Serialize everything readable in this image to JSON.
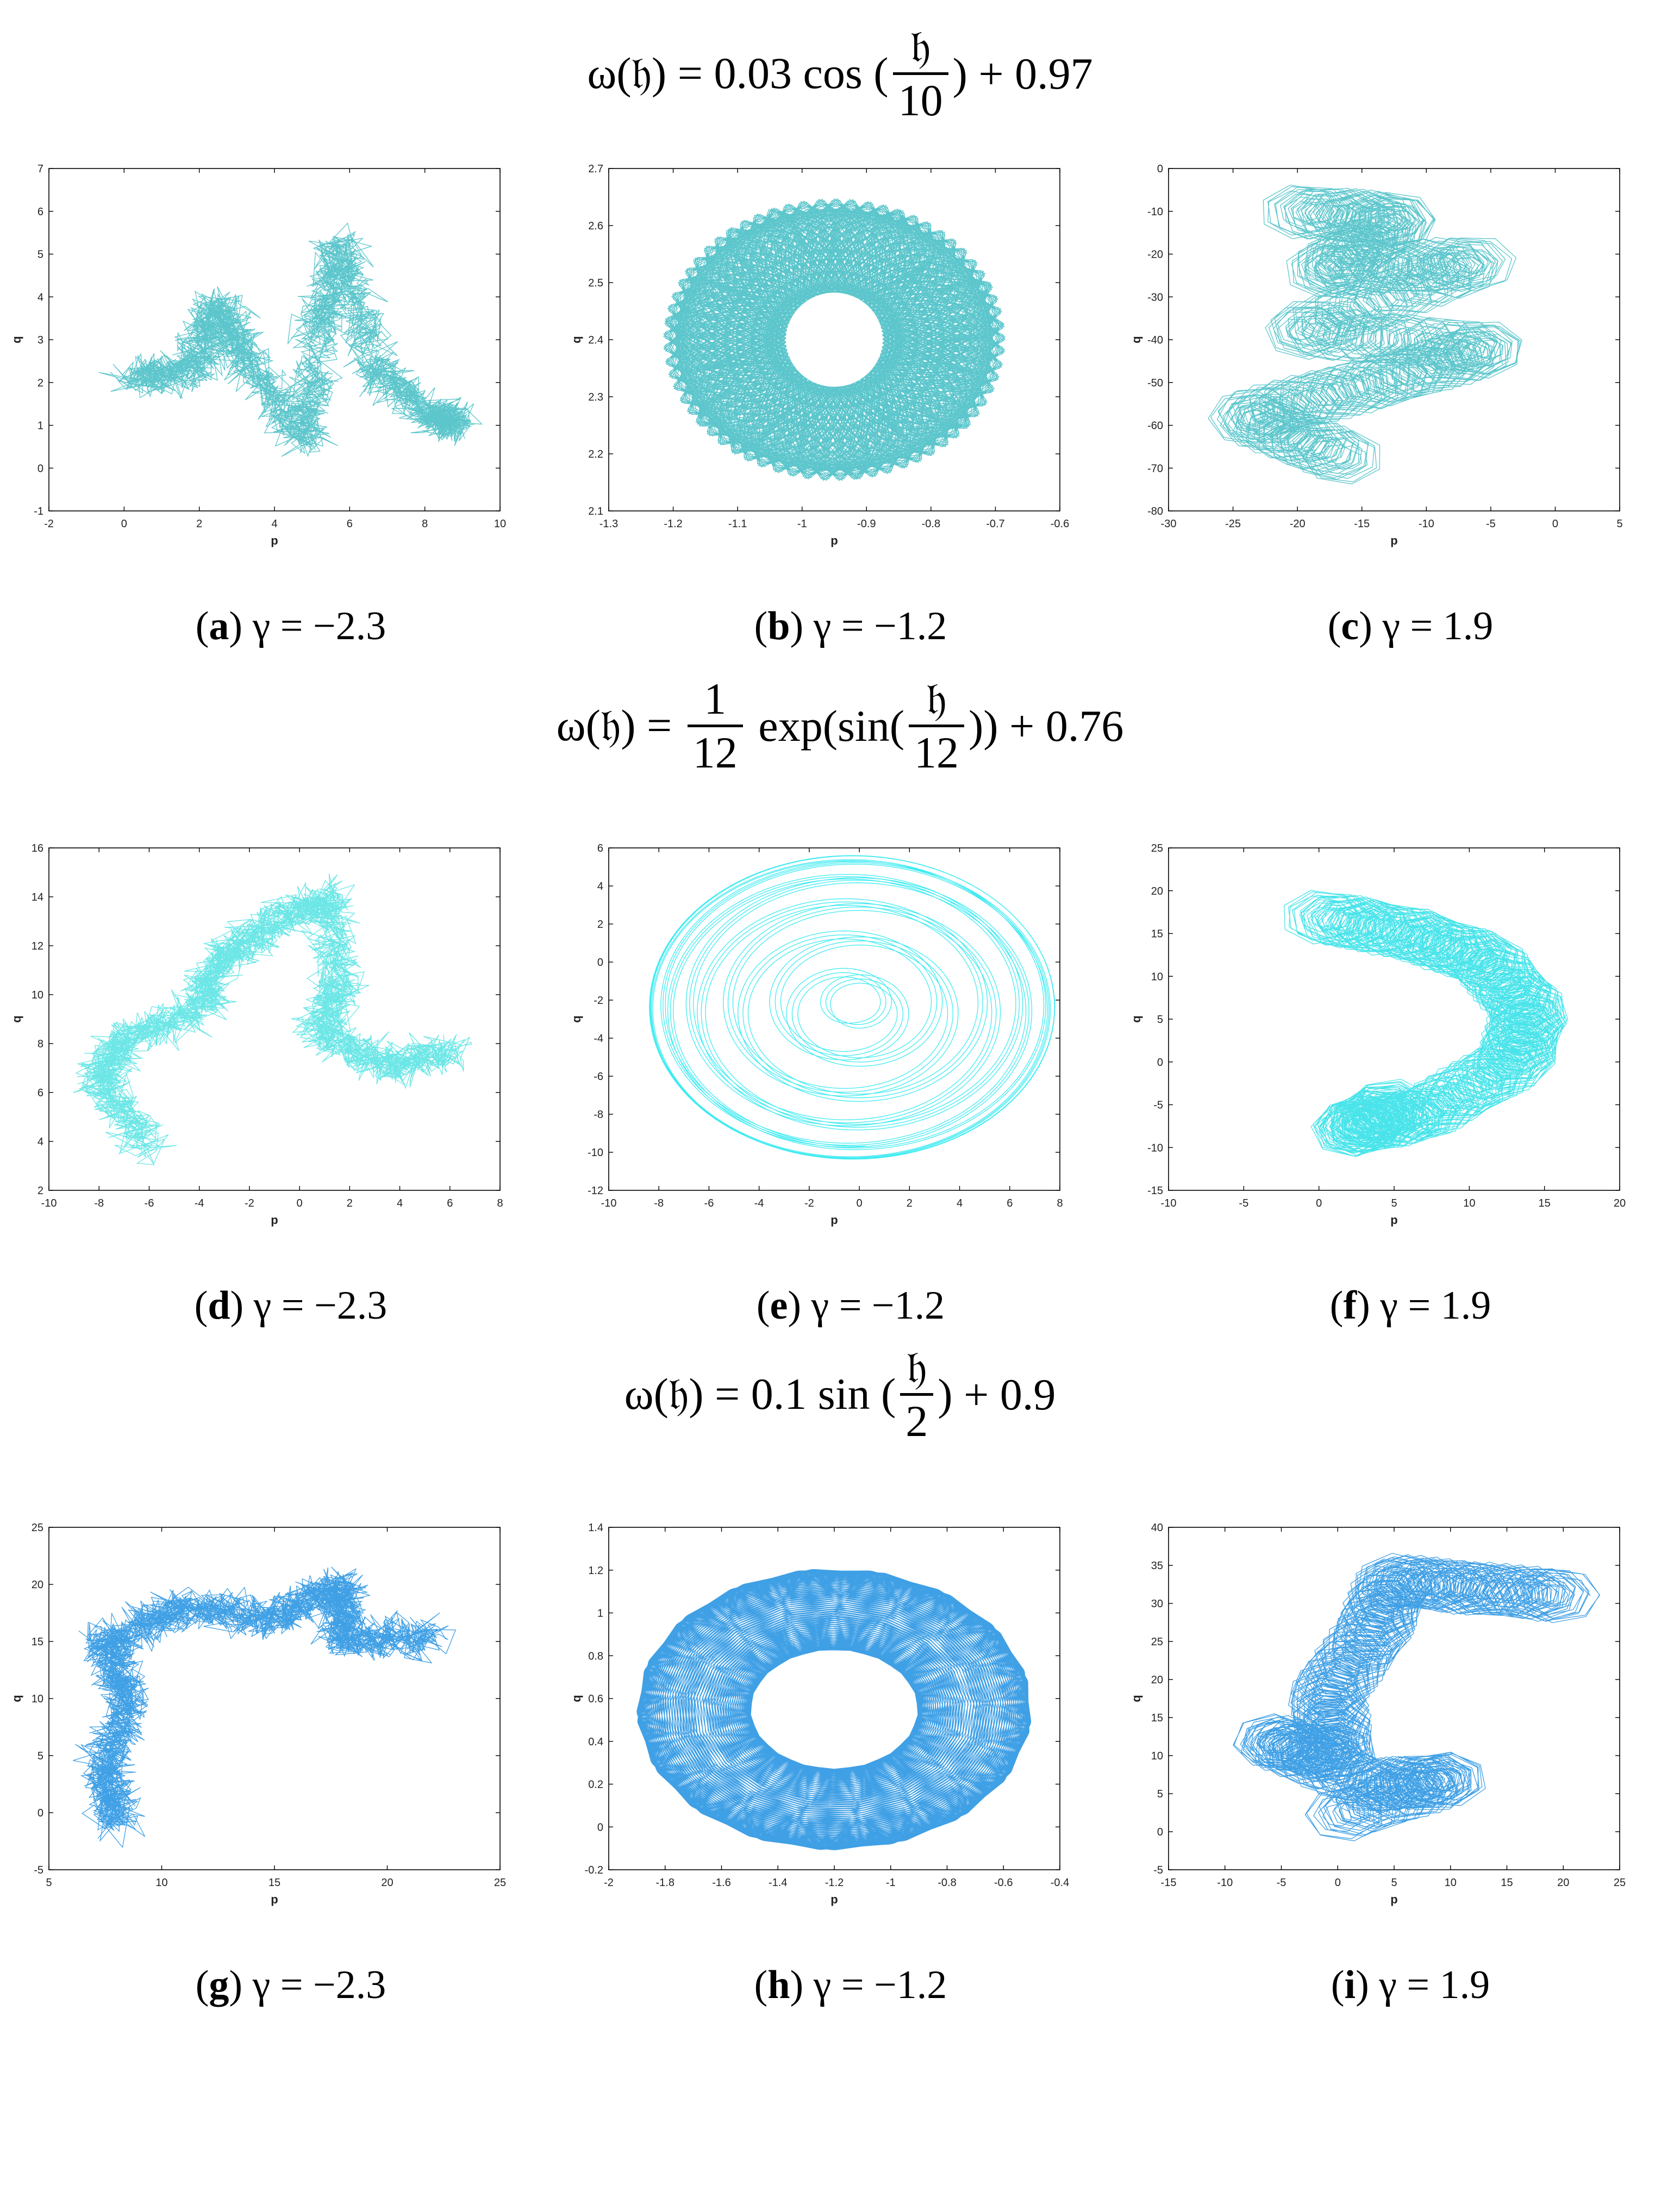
{
  "formulas": [
    {
      "prefix": "ω(𝔥) = 0.03 cos (",
      "num": "𝔥",
      "den": "10",
      "suffix": ") + 0.97"
    },
    {
      "prefix": "ω(𝔥) = ",
      "num": "1",
      "den": "12",
      "middle": " exp(sin(",
      "num2": "𝔥",
      "den2": "12",
      "suffix": ")) + 0.76"
    },
    {
      "prefix": "ω(𝔥) = 0.1 sin (",
      "num": "𝔥",
      "den": "2",
      "suffix": ") + 0.9"
    }
  ],
  "chart_data": [
    {
      "id": "a",
      "type": "line",
      "caption_letter": "a",
      "caption_text": " γ = −2.3",
      "xlabel": "p",
      "ylabel": "q",
      "xlim": [
        -2,
        10
      ],
      "ylim": [
        -1,
        7
      ],
      "xticks": [
        -2,
        0,
        2,
        4,
        6,
        8,
        10
      ],
      "yticks": [
        -1,
        0,
        1,
        2,
        3,
        4,
        5,
        6,
        7
      ],
      "color": "#3fbcc3",
      "pattern": "random_walk",
      "seed": 11,
      "waypoints": [
        [
          0.2,
          2.1
        ],
        [
          1.8,
          2.3
        ],
        [
          2.5,
          3.8
        ],
        [
          3.2,
          2.6
        ],
        [
          4.8,
          0.6
        ],
        [
          5.2,
          3.4
        ],
        [
          5.8,
          5.2
        ],
        [
          6.6,
          2.4
        ],
        [
          8.2,
          1.2
        ],
        [
          8.8,
          1.0
        ]
      ]
    },
    {
      "id": "b",
      "type": "line",
      "caption_letter": "b",
      "caption_text": " γ = −1.2",
      "xlabel": "p",
      "ylabel": "q",
      "xlim": [
        -1.3,
        -0.6
      ],
      "ylim": [
        2.1,
        2.7
      ],
      "xticks": [
        -1.3,
        -1.2,
        -1.1,
        -1,
        -0.9,
        -0.8,
        -0.7,
        -0.6
      ],
      "yticks": [
        2.1,
        2.2,
        2.3,
        2.4,
        2.5,
        2.6,
        2.7
      ],
      "color": "#3fbcc3",
      "pattern": "annulus_dense",
      "center": [
        -0.95,
        2.4
      ],
      "outer_radius": [
        0.265,
        0.27
      ],
      "inner_radius": [
        0.075,
        0.085
      ]
    },
    {
      "id": "c",
      "type": "line",
      "caption_letter": "c",
      "caption_text": " γ = 1.9",
      "xlabel": "p",
      "ylabel": "q",
      "xlim": [
        -30,
        5
      ],
      "ylim": [
        -80,
        0
      ],
      "xticks": [
        -30,
        -25,
        -20,
        -15,
        -10,
        -5,
        0,
        5
      ],
      "yticks": [
        -80,
        -70,
        -60,
        -50,
        -40,
        -30,
        -20,
        -10,
        0
      ],
      "color": "#3fbcc3",
      "pattern": "loops",
      "waypoints": [
        [
          -20,
          -10
        ],
        [
          -12,
          -12
        ],
        [
          -18,
          -24
        ],
        [
          -6,
          -22
        ],
        [
          -20,
          -38
        ],
        [
          -5,
          -42
        ],
        [
          -14,
          -50
        ],
        [
          -24,
          -58
        ],
        [
          -16,
          -68
        ]
      ]
    },
    {
      "id": "d",
      "type": "line",
      "caption_letter": "d",
      "caption_text": " γ = −2.3",
      "xlabel": "p",
      "ylabel": "q",
      "xlim": [
        -10,
        8
      ],
      "ylim": [
        2,
        16
      ],
      "xticks": [
        -10,
        -8,
        -6,
        -4,
        -2,
        0,
        2,
        4,
        6,
        8
      ],
      "yticks": [
        2,
        4,
        6,
        8,
        10,
        12,
        14,
        16
      ],
      "color": "#52e2e2",
      "pattern": "random_walk",
      "seed": 23,
      "waypoints": [
        [
          -6,
          3.8
        ],
        [
          -8,
          6.5
        ],
        [
          -7,
          8.2
        ],
        [
          -4,
          9.5
        ],
        [
          -3,
          11.5
        ],
        [
          -1,
          13
        ],
        [
          1.2,
          14
        ],
        [
          1.6,
          10.5
        ],
        [
          0.8,
          8.5
        ],
        [
          3.5,
          7
        ],
        [
          6,
          7.8
        ]
      ]
    },
    {
      "id": "e",
      "type": "line",
      "caption_letter": "e",
      "caption_text": " γ = −1.2",
      "xlabel": "p",
      "ylabel": "q",
      "xlim": [
        -10,
        8
      ],
      "ylim": [
        -12,
        6
      ],
      "xticks": [
        -10,
        -8,
        -6,
        -4,
        -2,
        0,
        2,
        4,
        6,
        8
      ],
      "yticks": [
        -12,
        -10,
        -8,
        -6,
        -4,
        -2,
        0,
        2,
        4,
        6
      ],
      "color": "#1ee8ee",
      "pattern": "rosette",
      "center": [
        -0.3,
        -2.4
      ],
      "radius_x": [
        8.1,
        8.2
      ],
      "radius_y": [
        8.0,
        8.2
      ]
    },
    {
      "id": "f",
      "type": "line",
      "caption_letter": "f",
      "caption_text": " γ = 1.9",
      "xlabel": "p",
      "ylabel": "q",
      "xlim": [
        -10,
        20
      ],
      "ylim": [
        -15,
        25
      ],
      "xticks": [
        -10,
        -5,
        0,
        5,
        10,
        15,
        20
      ],
      "yticks": [
        -15,
        -10,
        -5,
        0,
        5,
        10,
        15,
        20,
        25
      ],
      "color": "#29dfe6",
      "pattern": "loops",
      "waypoints": [
        [
          0,
          17
        ],
        [
          6,
          15
        ],
        [
          11,
          12
        ],
        [
          14,
          6
        ],
        [
          13,
          0
        ],
        [
          7,
          -6
        ],
        [
          2,
          -8
        ],
        [
          5,
          -5
        ]
      ]
    },
    {
      "id": "g",
      "type": "line",
      "caption_letter": "g",
      "caption_text": " γ = −2.3",
      "xlabel": "p",
      "ylabel": "q",
      "xlim": [
        5,
        25
      ],
      "ylim": [
        -5,
        25
      ],
      "xticks": [
        5,
        10,
        15,
        20,
        25
      ],
      "yticks": [
        -5,
        0,
        5,
        10,
        15,
        20,
        25
      ],
      "color": "#1e8fe0",
      "pattern": "random_walk",
      "seed": 37,
      "waypoints": [
        [
          8,
          -1
        ],
        [
          7.5,
          4
        ],
        [
          8.5,
          10
        ],
        [
          7.5,
          15
        ],
        [
          11,
          18
        ],
        [
          15,
          17
        ],
        [
          18,
          20
        ],
        [
          18,
          15
        ],
        [
          22,
          15.5
        ]
      ]
    },
    {
      "id": "h",
      "type": "line",
      "caption_letter": "h",
      "caption_text": " γ = −1.2",
      "xlabel": "p",
      "ylabel": "q",
      "xlim": [
        -2,
        -0.4
      ],
      "ylim": [
        -0.2,
        1.4
      ],
      "xticks": [
        -2,
        -1.8,
        -1.6,
        -1.4,
        -1.2,
        -1,
        -0.8,
        -0.6,
        -0.4
      ],
      "yticks": [
        -0.2,
        0,
        0.2,
        0.4,
        0.6,
        0.8,
        1,
        1.2,
        1.4
      ],
      "color": "#1e8fe0",
      "pattern": "annulus_rings",
      "center": [
        -1.2,
        0.55
      ],
      "outer_radius": [
        0.7,
        0.72
      ],
      "inner_radius": [
        0.3,
        0.32
      ]
    },
    {
      "id": "i",
      "type": "line",
      "caption_letter": "i",
      "caption_text": " γ = 1.9",
      "xlabel": "p",
      "ylabel": "q",
      "xlim": [
        -15,
        25
      ],
      "ylim": [
        -5,
        40
      ],
      "xticks": [
        -15,
        -10,
        -5,
        0,
        5,
        10,
        15,
        20,
        25
      ],
      "yticks": [
        -5,
        0,
        5,
        10,
        15,
        20,
        25,
        30,
        35,
        40
      ],
      "color": "#1e8fe0",
      "pattern": "loops",
      "waypoints": [
        [
          20,
          31
        ],
        [
          12,
          32
        ],
        [
          5,
          33
        ],
        [
          3,
          26
        ],
        [
          -1,
          18
        ],
        [
          0,
          10
        ],
        [
          -6,
          12
        ],
        [
          3,
          6
        ],
        [
          10,
          7
        ],
        [
          0,
          2
        ]
      ]
    }
  ]
}
